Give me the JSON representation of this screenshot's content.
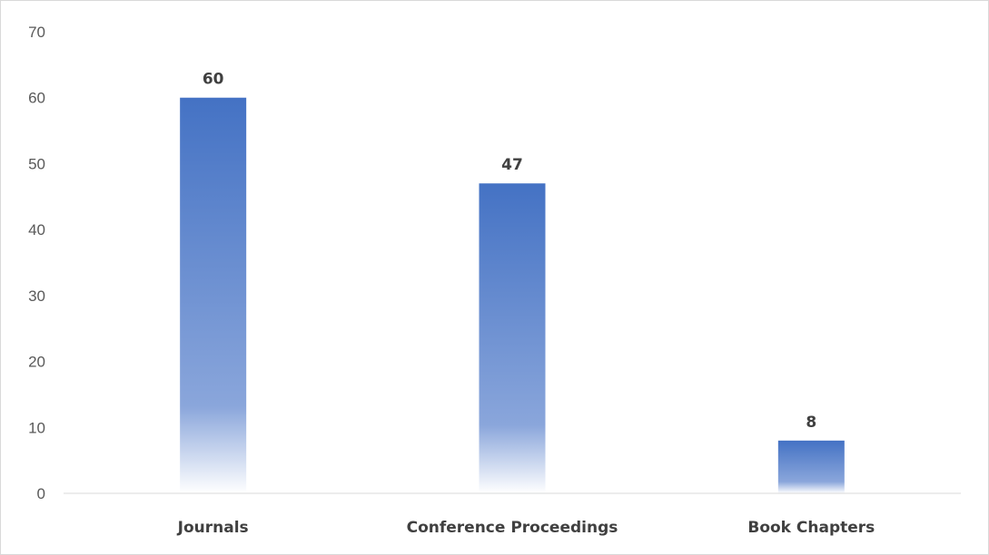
{
  "chart_data": {
    "type": "bar",
    "categories": [
      "Journals",
      "Conference Proceedings",
      "Book Chapters"
    ],
    "values": [
      60,
      47,
      8
    ],
    "title": "",
    "xlabel": "",
    "ylabel": "",
    "ylim": [
      0,
      70
    ],
    "yticks": [
      0,
      10,
      20,
      30,
      40,
      50,
      60,
      70
    ],
    "grid": false,
    "legend": "none",
    "data_labels": true,
    "colors": {
      "bar_top": "#4472c4",
      "bar_bottom": "#ffffff",
      "axis": "#d9d9d9",
      "tick_text": "#595959",
      "label_text": "#404040"
    }
  }
}
